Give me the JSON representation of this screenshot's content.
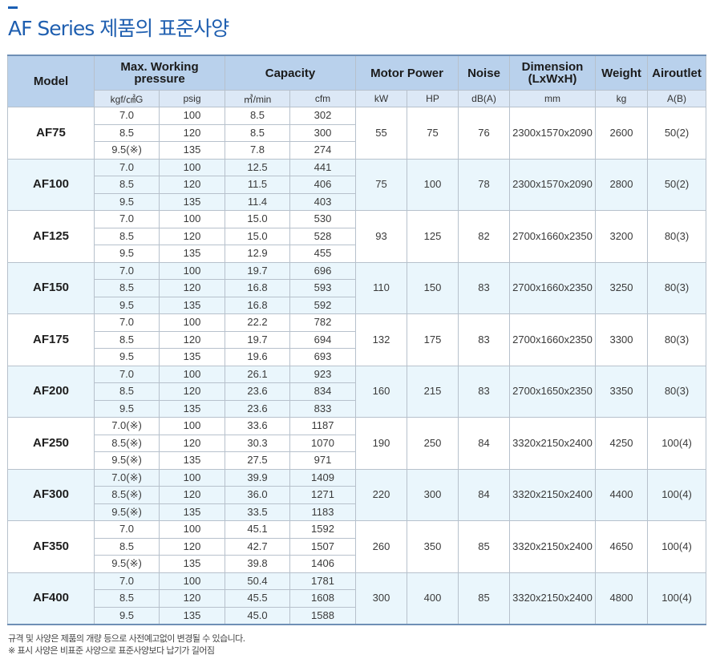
{
  "title": "AF Series 제품의 표준사양",
  "header": {
    "model": "Model",
    "pressure": "Max. Working",
    "pressure2": "pressure",
    "capacity": "Capacity",
    "motor": "Motor Power",
    "noise": "Noise",
    "dimension": "Dimension",
    "dimension2": "(LxWxH)",
    "weight": "Weight",
    "airoutlet": "Airoutlet"
  },
  "units": {
    "kgf": "kgf/㎠G",
    "psig": "psig",
    "m3min": "㎥/min",
    "cfm": "cfm",
    "kw": "kW",
    "hp": "HP",
    "db": "dB(A)",
    "mm": "mm",
    "kg": "kg",
    "ab": "A(B)"
  },
  "models": [
    {
      "model": "AF75",
      "kw": "55",
      "hp": "75",
      "noise": "76",
      "dim": "2300x1570x2090",
      "weight": "2600",
      "outlet": "50(2)",
      "rows": [
        [
          "7.0",
          "100",
          "8.5",
          "302"
        ],
        [
          "8.5",
          "120",
          "8.5",
          "300"
        ],
        [
          "9.5(※)",
          "135",
          "7.8",
          "274"
        ]
      ]
    },
    {
      "model": "AF100",
      "kw": "75",
      "hp": "100",
      "noise": "78",
      "dim": "2300x1570x2090",
      "weight": "2800",
      "outlet": "50(2)",
      "rows": [
        [
          "7.0",
          "100",
          "12.5",
          "441"
        ],
        [
          "8.5",
          "120",
          "11.5",
          "406"
        ],
        [
          "9.5",
          "135",
          "11.4",
          "403"
        ]
      ]
    },
    {
      "model": "AF125",
      "kw": "93",
      "hp": "125",
      "noise": "82",
      "dim": "2700x1660x2350",
      "weight": "3200",
      "outlet": "80(3)",
      "rows": [
        [
          "7.0",
          "100",
          "15.0",
          "530"
        ],
        [
          "8.5",
          "120",
          "15.0",
          "528"
        ],
        [
          "9.5",
          "135",
          "12.9",
          "455"
        ]
      ]
    },
    {
      "model": "AF150",
      "kw": "110",
      "hp": "150",
      "noise": "83",
      "dim": "2700x1660x2350",
      "weight": "3250",
      "outlet": "80(3)",
      "rows": [
        [
          "7.0",
          "100",
          "19.7",
          "696"
        ],
        [
          "8.5",
          "120",
          "16.8",
          "593"
        ],
        [
          "9.5",
          "135",
          "16.8",
          "592"
        ]
      ]
    },
    {
      "model": "AF175",
      "kw": "132",
      "hp": "175",
      "noise": "83",
      "dim": "2700x1660x2350",
      "weight": "3300",
      "outlet": "80(3)",
      "rows": [
        [
          "7.0",
          "100",
          "22.2",
          "782"
        ],
        [
          "8.5",
          "120",
          "19.7",
          "694"
        ],
        [
          "9.5",
          "135",
          "19.6",
          "693"
        ]
      ]
    },
    {
      "model": "AF200",
      "kw": "160",
      "hp": "215",
      "noise": "83",
      "dim": "2700x1650x2350",
      "weight": "3350",
      "outlet": "80(3)",
      "rows": [
        [
          "7.0",
          "100",
          "26.1",
          "923"
        ],
        [
          "8.5",
          "120",
          "23.6",
          "834"
        ],
        [
          "9.5",
          "135",
          "23.6",
          "833"
        ]
      ]
    },
    {
      "model": "AF250",
      "kw": "190",
      "hp": "250",
      "noise": "84",
      "dim": "3320x2150x2400",
      "weight": "4250",
      "outlet": "100(4)",
      "rows": [
        [
          "7.0(※)",
          "100",
          "33.6",
          "1187"
        ],
        [
          "8.5(※)",
          "120",
          "30.3",
          "1070"
        ],
        [
          "9.5(※)",
          "135",
          "27.5",
          "971"
        ]
      ]
    },
    {
      "model": "AF300",
      "kw": "220",
      "hp": "300",
      "noise": "84",
      "dim": "3320x2150x2400",
      "weight": "4400",
      "outlet": "100(4)",
      "rows": [
        [
          "7.0(※)",
          "100",
          "39.9",
          "1409"
        ],
        [
          "8.5(※)",
          "120",
          "36.0",
          "1271"
        ],
        [
          "9.5(※)",
          "135",
          "33.5",
          "1183"
        ]
      ]
    },
    {
      "model": "AF350",
      "kw": "260",
      "hp": "350",
      "noise": "85",
      "dim": "3320x2150x2400",
      "weight": "4650",
      "outlet": "100(4)",
      "rows": [
        [
          "7.0",
          "100",
          "45.1",
          "1592"
        ],
        [
          "8.5",
          "120",
          "42.7",
          "1507"
        ],
        [
          "9.5(※)",
          "135",
          "39.8",
          "1406"
        ]
      ]
    },
    {
      "model": "AF400",
      "kw": "300",
      "hp": "400",
      "noise": "85",
      "dim": "3320x2150x2400",
      "weight": "4800",
      "outlet": "100(4)",
      "rows": [
        [
          "7.0",
          "100",
          "50.4",
          "1781"
        ],
        [
          "8.5",
          "120",
          "45.5",
          "1608"
        ],
        [
          "9.5",
          "135",
          "45.0",
          "1588"
        ]
      ]
    }
  ],
  "notes": [
    "규격 및 사양은 제품의 개량 등으로 사전예고없이 변경될 수 있습니다.",
    "※ 표시 사양은 비표준 사양으로 표준사양보다 납기가 길어짐"
  ]
}
